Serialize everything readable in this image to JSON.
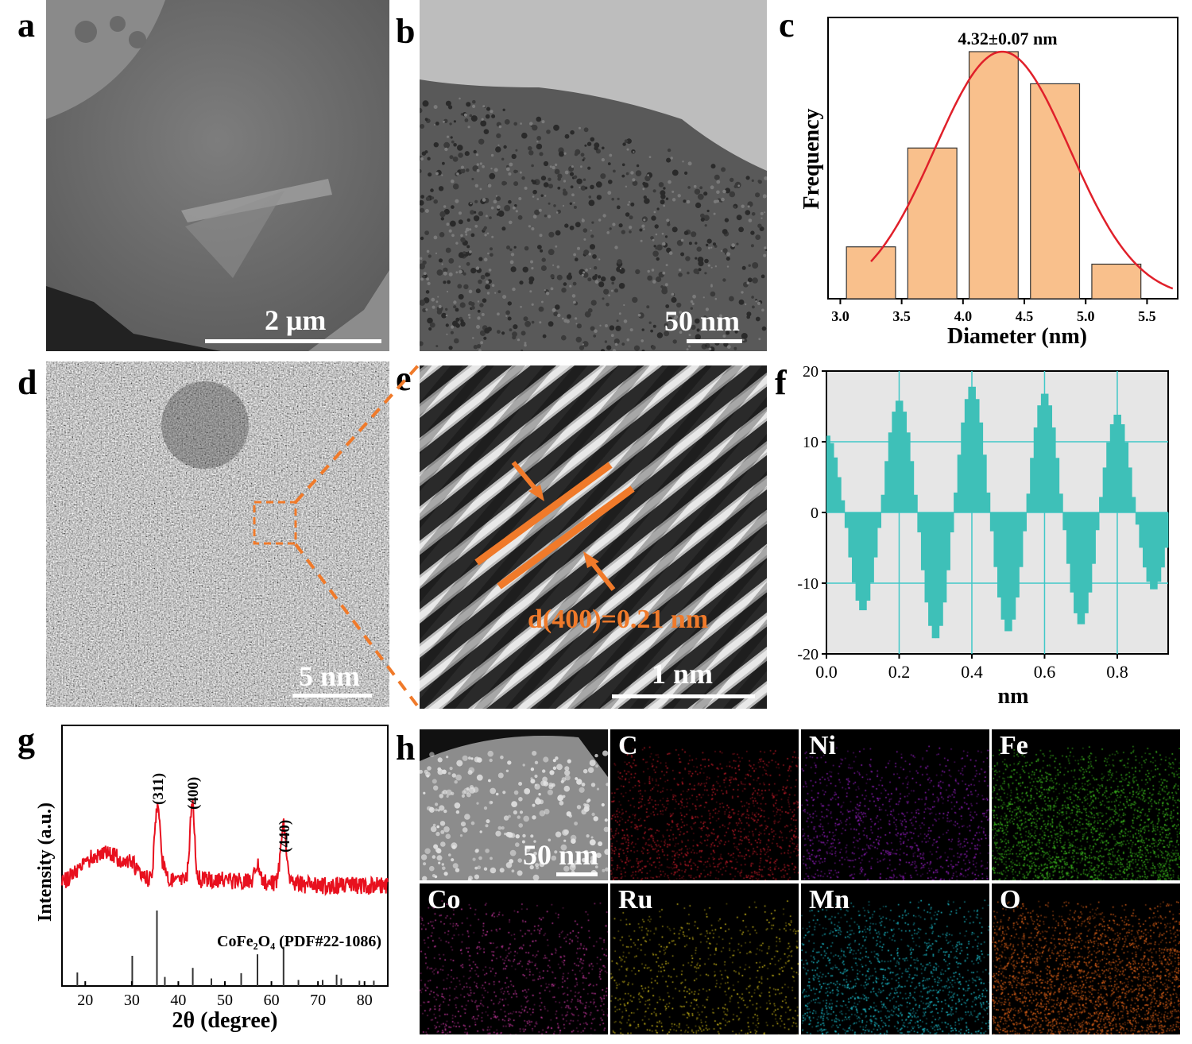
{
  "panels": {
    "a": {
      "letter": "a",
      "scale": "2 μm"
    },
    "b": {
      "letter": "b",
      "scale": "50 nm"
    },
    "c": {
      "letter": "c"
    },
    "d": {
      "letter": "d",
      "scale": "5 nm"
    },
    "e": {
      "letter": "e",
      "scale": "1 nm",
      "annotation": "d(400)=0.21 nm"
    },
    "f": {
      "letter": "f"
    },
    "g": {
      "letter": "g"
    },
    "h": {
      "letter": "h",
      "scale": "50 nm",
      "elements": [
        "C",
        "Ni",
        "Fe",
        "Co",
        "Ru",
        "Mn",
        "O"
      ],
      "element_colors": [
        "#c81c2a",
        "#a020d0",
        "#3ec21f",
        "#d23aa8",
        "#d8c21a",
        "#1ec8d8",
        "#e8661a"
      ]
    }
  },
  "chart_data": [
    {
      "id": "c",
      "type": "bar",
      "xlabel": "Diameter (nm)",
      "ylabel": "Frequency",
      "annotation": "4.32±0.07 nm",
      "xlim": [
        2.9,
        5.75
      ],
      "ylim": [
        0,
        1
      ],
      "xticks": [
        "3.0",
        "3.5",
        "4.0",
        "4.5",
        "5.0",
        "5.5"
      ],
      "bins": [
        [
          3.05,
          3.45
        ],
        [
          3.55,
          3.95
        ],
        [
          4.05,
          4.45
        ],
        [
          4.55,
          4.95
        ],
        [
          5.05,
          5.45
        ]
      ],
      "values": [
        0.21,
        0.61,
        1.0,
        0.87,
        0.14
      ],
      "fit": "gaussian",
      "fit_mean": 4.32,
      "fit_sigma": 0.55,
      "fit_peak": 1.0,
      "bar_color": "#f9c08c",
      "fit_color": "#e0202a"
    },
    {
      "id": "f",
      "type": "bar",
      "xlabel": "nm",
      "ylabel": "",
      "xlim": [
        0,
        0.94
      ],
      "ylim": [
        -20,
        20
      ],
      "xticks": [
        "0.0",
        "0.2",
        "0.4",
        "0.6",
        "0.8"
      ],
      "yticks": [
        "20",
        "10",
        "0",
        "-10",
        "-20"
      ],
      "period_nm": 0.2,
      "peaks": [
        11,
        16,
        18,
        17,
        14
      ],
      "troughs": [
        -14,
        -18,
        -17,
        -16,
        -11
      ],
      "bar_color": "#3ec0b8",
      "grid_color": "#40c8c8",
      "background": "#e6e6e6"
    },
    {
      "id": "g",
      "type": "line",
      "xlabel": "2θ (degree)",
      "ylabel": "Intensity (a.u.)",
      "xlim": [
        15,
        85
      ],
      "xticks": [
        "20",
        "30",
        "40",
        "50",
        "60",
        "70",
        "80"
      ],
      "peak_labels": [
        {
          "text": "(311)",
          "x": 35.5
        },
        {
          "text": "(400)",
          "x": 43.0
        },
        {
          "text": "(440)",
          "x": 62.6
        }
      ],
      "reference_label": "CoFe₂O₄ (PDF#22-1086)",
      "reference_lines": [
        {
          "x": 18.3,
          "h": 0.18
        },
        {
          "x": 30.1,
          "h": 0.4
        },
        {
          "x": 35.4,
          "h": 1.0
        },
        {
          "x": 37.1,
          "h": 0.12
        },
        {
          "x": 43.1,
          "h": 0.24
        },
        {
          "x": 47.1,
          "h": 0.1
        },
        {
          "x": 53.5,
          "h": 0.17
        },
        {
          "x": 57.0,
          "h": 0.42
        },
        {
          "x": 62.6,
          "h": 0.52
        },
        {
          "x": 65.8,
          "h": 0.08
        },
        {
          "x": 71.0,
          "h": 0.08
        },
        {
          "x": 74.0,
          "h": 0.15
        },
        {
          "x": 75.0,
          "h": 0.1
        },
        {
          "x": 78.9,
          "h": 0.07
        },
        {
          "x": 82.0,
          "h": 0.07
        }
      ],
      "line_color": "#e8101e"
    }
  ]
}
